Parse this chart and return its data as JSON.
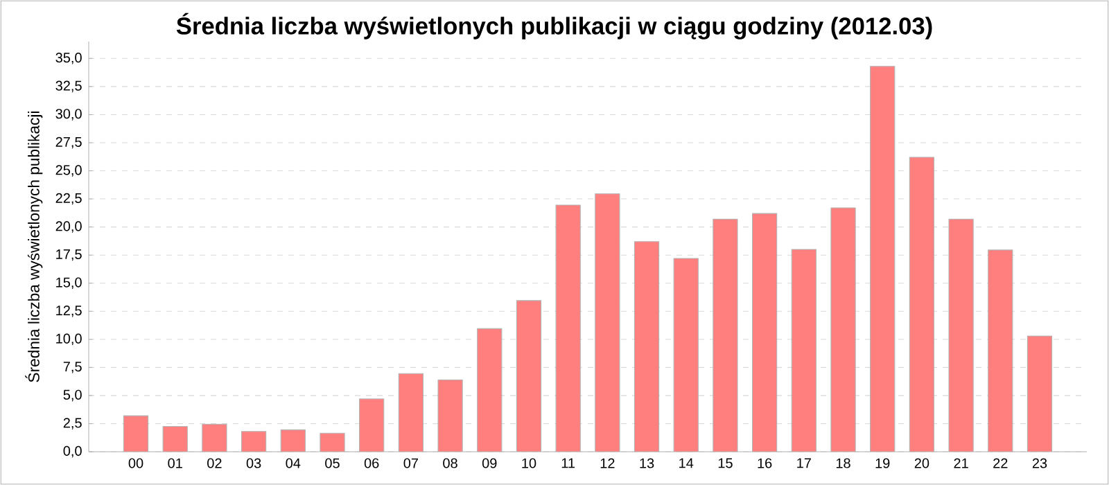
{
  "chart_data": {
    "type": "bar",
    "title": "Średnia liczba wyświetlonych publikacji w ciągu godziny (2012.03)",
    "ylabel": "Średnia liczba wyświetlonych publikacji",
    "categories": [
      "00",
      "01",
      "02",
      "03",
      "04",
      "05",
      "06",
      "07",
      "08",
      "09",
      "10",
      "11",
      "12",
      "13",
      "14",
      "15",
      "16",
      "17",
      "18",
      "19",
      "20",
      "21",
      "22",
      "23"
    ],
    "values": [
      3.2,
      2.25,
      2.45,
      1.8,
      1.95,
      1.65,
      4.7,
      6.95,
      6.4,
      10.95,
      13.45,
      21.95,
      22.95,
      18.7,
      17.2,
      20.7,
      21.2,
      18.0,
      21.7,
      34.3,
      26.2,
      20.7,
      17.95,
      10.3
    ],
    "color": "#ff7f7f",
    "ylim": [
      0,
      36.5
    ],
    "yticks": [
      {
        "value": 0,
        "label": "0,0"
      },
      {
        "value": 2.5,
        "label": "2,5"
      },
      {
        "value": 5,
        "label": "5,0"
      },
      {
        "value": 7.5,
        "label": "7,5"
      },
      {
        "value": 10,
        "label": "10,0"
      },
      {
        "value": 12.5,
        "label": "12,5"
      },
      {
        "value": 15,
        "label": "15,0"
      },
      {
        "value": 17.5,
        "label": "17,5"
      },
      {
        "value": 20,
        "label": "20,0"
      },
      {
        "value": 22.5,
        "label": "22,5"
      },
      {
        "value": 25,
        "label": "25,0"
      },
      {
        "value": 27.5,
        "label": "27,5"
      },
      {
        "value": 30,
        "label": "30,0"
      },
      {
        "value": 32.5,
        "label": "32,5"
      },
      {
        "value": 35,
        "label": "35,0"
      }
    ],
    "grid": "y"
  }
}
